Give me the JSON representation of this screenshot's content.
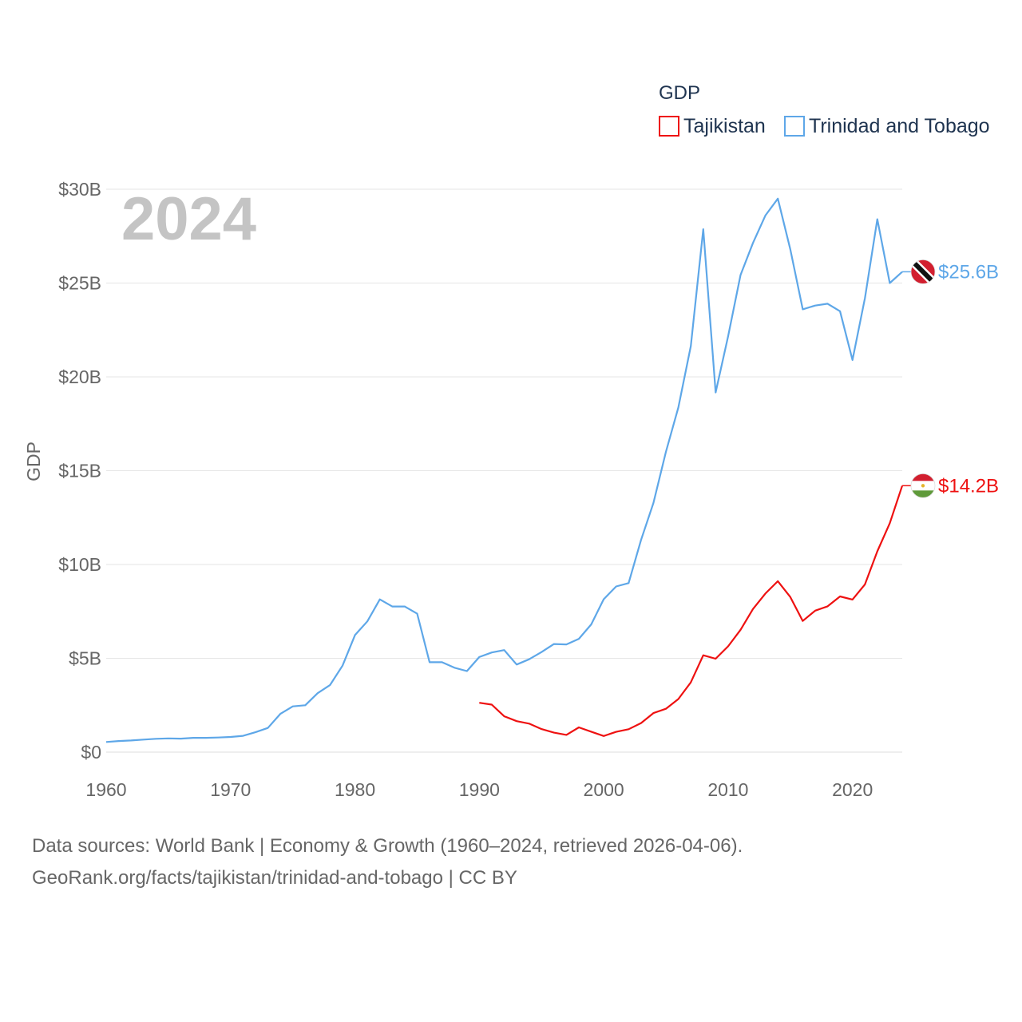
{
  "chart_data": {
    "type": "line",
    "ylabel": "GDP",
    "legend_title": "GDP",
    "legend_position": "top-right",
    "year_watermark": "2024",
    "ylim": [
      0,
      30000000000
    ],
    "xlim": [
      1960,
      2024
    ],
    "y_ticks": [
      {
        "value": 0,
        "label": "$0"
      },
      {
        "value": 5000000000,
        "label": "$5B"
      },
      {
        "value": 10000000000,
        "label": "$10B"
      },
      {
        "value": 15000000000,
        "label": "$15B"
      },
      {
        "value": 20000000000,
        "label": "$20B"
      },
      {
        "value": 25000000000,
        "label": "$25B"
      },
      {
        "value": 30000000000,
        "label": "$30B"
      }
    ],
    "x_ticks": [
      {
        "value": 1960,
        "label": "1960"
      },
      {
        "value": 1970,
        "label": "1970"
      },
      {
        "value": 1980,
        "label": "1980"
      },
      {
        "value": 1990,
        "label": "1990"
      },
      {
        "value": 2000,
        "label": "2000"
      },
      {
        "value": 2010,
        "label": "2010"
      },
      {
        "value": 2020,
        "label": "2020"
      }
    ],
    "grid": true,
    "series": [
      {
        "name": "Tajikistan",
        "color": "#ee1111",
        "end_label": "$14.2B",
        "flag_icon": "tajikistan-flag-icon",
        "x": [
          1990,
          1991,
          1992,
          1993,
          1994,
          1995,
          1996,
          1997,
          1998,
          1999,
          2000,
          2001,
          2002,
          2003,
          2004,
          2005,
          2006,
          2007,
          2008,
          2009,
          2010,
          2011,
          2012,
          2013,
          2014,
          2015,
          2016,
          2017,
          2018,
          2019,
          2020,
          2021,
          2022,
          2023,
          2024
        ],
        "values": [
          2630000000.0,
          2530000000.0,
          1910000000.0,
          1650000000.0,
          1520000000.0,
          1230000000.0,
          1040000000.0,
          920000000.0,
          1320000000.0,
          1090000000.0,
          860000000.0,
          1080000000.0,
          1220000000.0,
          1550000000.0,
          2080000000.0,
          2310000000.0,
          2830000000.0,
          3720000000.0,
          5160000000.0,
          4980000000.0,
          5640000000.0,
          6520000000.0,
          7630000000.0,
          8450000000.0,
          9110000000.0,
          8270000000.0,
          6990000000.0,
          7540000000.0,
          7770000000.0,
          8300000000.0,
          8130000000.0,
          8940000000.0,
          10700000000.0,
          12200000000.0,
          14200000000.0
        ]
      },
      {
        "name": "Trinidad and Tobago",
        "color": "#5ea7e8",
        "end_label": "$25.6B",
        "flag_icon": "trinidad-and-tobago-flag-icon",
        "x": [
          1960,
          1961,
          1962,
          1963,
          1964,
          1965,
          1966,
          1967,
          1968,
          1969,
          1970,
          1971,
          1972,
          1973,
          1974,
          1975,
          1976,
          1977,
          1978,
          1979,
          1980,
          1981,
          1982,
          1983,
          1984,
          1985,
          1986,
          1987,
          1988,
          1989,
          1990,
          1991,
          1992,
          1993,
          1994,
          1995,
          1996,
          1997,
          1998,
          1999,
          2000,
          2001,
          2002,
          2003,
          2004,
          2005,
          2006,
          2007,
          2008,
          2009,
          2010,
          2011,
          2012,
          2013,
          2014,
          2015,
          2016,
          2017,
          2018,
          2019,
          2020,
          2021,
          2022,
          2023,
          2024
        ],
        "values": [
          540000000.0,
          590000000.0,
          620000000.0,
          670000000.0,
          710000000.0,
          730000000.0,
          720000000.0,
          760000000.0,
          760000000.0,
          780000000.0,
          810000000.0,
          870000000.0,
          1060000000.0,
          1290000000.0,
          2040000000.0,
          2440000000.0,
          2500000000.0,
          3140000000.0,
          3580000000.0,
          4610000000.0,
          6240000000.0,
          6970000000.0,
          8140000000.0,
          7760000000.0,
          7760000000.0,
          7380000000.0,
          4790000000.0,
          4790000000.0,
          4500000000.0,
          4320000000.0,
          5070000000.0,
          5310000000.0,
          5440000000.0,
          4670000000.0,
          4950000000.0,
          5330000000.0,
          5760000000.0,
          5740000000.0,
          6040000000.0,
          6810000000.0,
          8150000000.0,
          8830000000.0,
          9010000000.0,
          11310000000.0,
          13280000000.0,
          16000000000.0,
          18370000000.0,
          21640000000.0,
          27870000000.0,
          19170000000.0,
          22160000000.0,
          25430000000.0,
          27140000000.0,
          28600000000.0,
          29500000000.0,
          26800000000.0,
          23600000000.0,
          23800000000.0,
          23900000000.0,
          23500000000.0,
          20900000000.0,
          24200000000.0,
          28400000000.0,
          25000000000.0,
          25600000000.0
        ]
      }
    ]
  },
  "footer": {
    "line1": "Data sources: World Bank | Economy & Growth (1960–2024, retrieved 2026-04-06).",
    "line2": "GeoRank.org/facts/tajikistan/trinidad-and-tobago | CC BY"
  }
}
